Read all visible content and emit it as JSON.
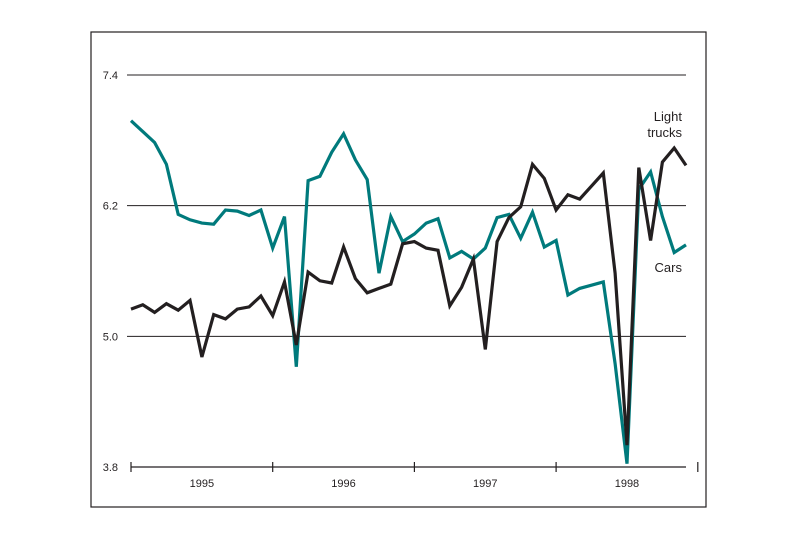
{
  "chart_data": {
    "type": "line",
    "title": "",
    "xlabel": "",
    "ylabel": "",
    "ylim": [
      3.8,
      7.4
    ],
    "yticks": [
      "7.4",
      "6.2",
      "5.0",
      "3.8"
    ],
    "year_labels": [
      "1995",
      "1996",
      "1997",
      "1998"
    ],
    "grid": "horizontal",
    "x_unit": "month index from Jan 1995",
    "series": [
      {
        "name": "Cars",
        "label": "Cars",
        "color": "#007a7c",
        "values": [
          6.98,
          6.88,
          6.78,
          6.58,
          6.12,
          6.07,
          6.04,
          6.03,
          6.16,
          6.15,
          6.11,
          6.16,
          5.81,
          6.1,
          4.72,
          6.43,
          6.47,
          6.69,
          6.86,
          6.62,
          6.44,
          5.58,
          6.1,
          5.87,
          5.94,
          6.04,
          6.08,
          5.72,
          5.78,
          5.71,
          5.81,
          6.09,
          6.12,
          5.9,
          6.14,
          5.82,
          5.88,
          5.38,
          5.44,
          5.47,
          5.5,
          4.75,
          3.83,
          6.35,
          6.51,
          6.1,
          5.77,
          5.84
        ]
      },
      {
        "name": "Light trucks",
        "label": [
          "Light",
          "trucks"
        ],
        "color": "#231f20",
        "values": [
          5.25,
          5.29,
          5.22,
          5.3,
          5.24,
          5.33,
          4.81,
          5.2,
          5.16,
          5.25,
          5.27,
          5.37,
          5.19,
          5.5,
          4.92,
          5.59,
          5.51,
          5.49,
          5.82,
          5.53,
          5.4,
          5.44,
          5.48,
          5.85,
          5.87,
          5.81,
          5.79,
          5.28,
          5.45,
          5.71,
          4.88,
          5.87,
          6.09,
          6.19,
          6.58,
          6.45,
          6.16,
          6.3,
          6.26,
          6.38,
          6.5,
          5.58,
          4.0,
          6.55,
          5.88,
          6.6,
          6.73,
          6.57
        ]
      }
    ]
  }
}
